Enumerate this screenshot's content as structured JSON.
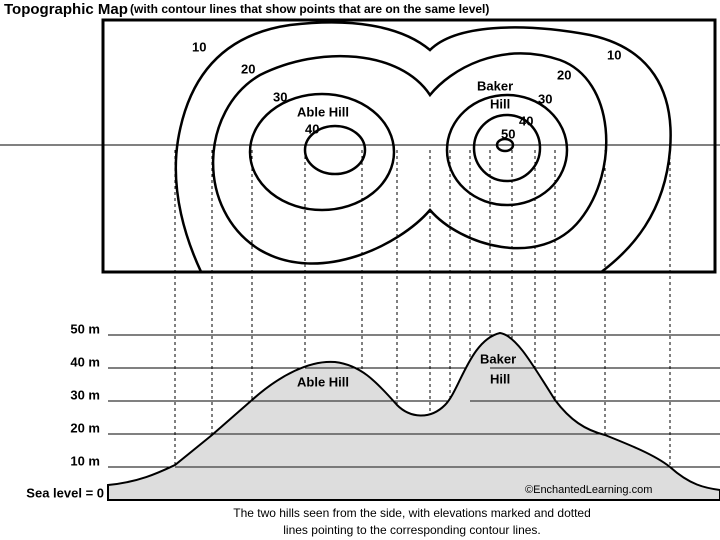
{
  "header": {
    "title": "Topographic Map",
    "subtitle": "(with contour lines that show points that are on the same level)"
  },
  "map": {
    "contour_labels": [
      "10",
      "20",
      "30",
      "40",
      "30",
      "40",
      "50",
      "20",
      "10"
    ],
    "hill_labels": [
      "Able Hill",
      "Baker",
      "Hill"
    ]
  },
  "profile": {
    "elevation_labels": [
      "50 m",
      "40 m",
      "30 m",
      "20 m",
      "10 m",
      "Sea level = 0"
    ],
    "hill_labels": [
      "Able Hill",
      "Baker",
      "Hill"
    ],
    "copyright": "©EnchantedLearning.com"
  },
  "caption": [
    "The two hills seen from the side, with elevations marked and dotted",
    "lines pointing to the corresponding contour lines."
  ]
}
